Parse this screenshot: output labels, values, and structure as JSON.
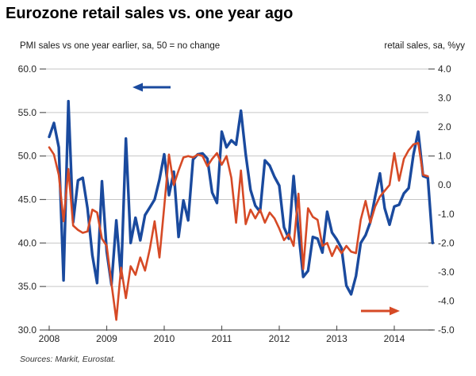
{
  "title": "Eurozone retail sales vs. one year ago",
  "subtitle_left": "PMI sales vs one year earlier, sa, 50 = no change",
  "subtitle_right": "retail sales, sa, %yy",
  "source_note": "Sources: Markit, Eurostat.",
  "colors": {
    "pmi_line": "#1a4a9e",
    "retail_line": "#d64a26",
    "grid": "#c6c6c6",
    "axis": "#595959",
    "text": "#262626"
  },
  "chart_data": {
    "type": "line",
    "title": "Eurozone retail sales vs. one year ago",
    "x_unit": "month",
    "x_start": "2008-01",
    "x_tick_labels": [
      "2008",
      "2009",
      "2010",
      "2011",
      "2012",
      "2013",
      "2014"
    ],
    "grid": "horizontal-only",
    "left_axis": {
      "label": "PMI sales vs one year earlier, sa, 50 = no change",
      "min": 30,
      "max": 60,
      "tick_labels": [
        "60.0",
        "55.0",
        "50.0",
        "45.0",
        "40.0",
        "35.0",
        "30.0"
      ]
    },
    "right_axis": {
      "label": "retail sales, sa, %yy",
      "min": -5,
      "max": 4,
      "tick_labels": [
        "4.0",
        "3.0",
        "2.0",
        "1.0",
        "0.0",
        "-1.0",
        "-2.0",
        "-3.0",
        "-4.0",
        "-5.0"
      ]
    },
    "series": [
      {
        "name": "PMI sales vs one year earlier",
        "axis": "left",
        "color_key": "pmi_line",
        "start": "2008-01",
        "values": [
          52.2,
          53.8,
          51.0,
          35.7,
          56.3,
          42.4,
          47.2,
          47.5,
          44.0,
          38.6,
          35.4,
          47.1,
          39.0,
          35.2,
          42.6,
          36.0,
          52.0,
          40.0,
          42.9,
          40.3,
          43.2,
          44.1,
          45.0,
          47.3,
          50.2,
          45.5,
          48.2,
          40.7,
          44.9,
          42.6,
          49.6,
          50.2,
          50.3,
          49.7,
          45.8,
          44.6,
          52.8,
          51.0,
          51.8,
          51.3,
          55.2,
          50.2,
          46.1,
          44.3,
          43.6,
          49.5,
          48.9,
          47.6,
          46.6,
          41.8,
          40.5,
          47.7,
          41.3,
          36.1,
          36.8,
          40.7,
          40.5,
          38.9,
          43.6,
          41.2,
          40.4,
          39.4,
          35.1,
          34.1,
          36.2,
          40.0,
          40.9,
          42.4,
          45.3,
          48.0,
          44.0,
          42.1,
          44.2,
          44.4,
          45.7,
          46.3,
          50.2,
          52.8,
          47.7,
          47.5,
          40.0
        ]
      },
      {
        "name": "retail sales, sa, %yy",
        "axis": "right",
        "color_key": "retail_line",
        "start": "2008-01",
        "values": [
          1.3,
          1.05,
          0.35,
          -1.25,
          0.55,
          -1.4,
          -1.55,
          -1.65,
          -1.6,
          -0.85,
          -0.95,
          -1.85,
          -2.1,
          -3.4,
          -4.65,
          -2.85,
          -3.9,
          -2.8,
          -3.1,
          -2.5,
          -2.95,
          -2.2,
          -1.25,
          -2.5,
          -0.75,
          1.05,
          0.0,
          0.5,
          0.95,
          1.0,
          0.95,
          1.05,
          1.0,
          0.65,
          0.9,
          1.1,
          0.7,
          1.0,
          0.25,
          -1.3,
          0.5,
          -1.35,
          -0.85,
          -1.15,
          -0.85,
          -1.3,
          -0.95,
          -1.15,
          -1.5,
          -1.9,
          -1.7,
          -2.1,
          -0.3,
          -2.9,
          -0.8,
          -1.1,
          -1.2,
          -2.1,
          -2.0,
          -2.45,
          -2.1,
          -2.35,
          -2.1,
          -2.3,
          -2.35,
          -1.2,
          -0.55,
          -1.3,
          -0.75,
          -0.4,
          -0.2,
          0.0,
          1.1,
          0.15,
          0.9,
          1.2,
          1.4,
          1.45,
          0.35,
          0.3
        ]
      }
    ],
    "annotations": [
      {
        "type": "arrow",
        "name": "pmi-series-arrow",
        "direction": "left",
        "color_key": "pmi_line",
        "tail": [
          215,
          110
        ],
        "tip": [
          167,
          110
        ]
      },
      {
        "type": "arrow",
        "name": "retail-series-arrow",
        "direction": "right",
        "color_key": "retail_line",
        "tail": [
          455,
          392
        ],
        "tip": [
          504,
          392
        ]
      }
    ],
    "legend": "none"
  }
}
